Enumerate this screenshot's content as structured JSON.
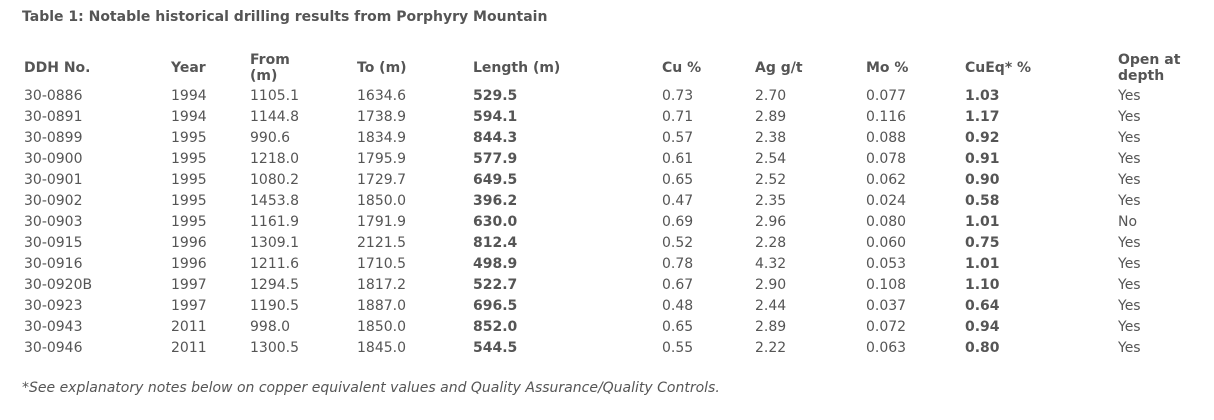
{
  "caption": "Table 1: Notable historical drilling results from Porphyry Mountain",
  "headers": [
    "DDH No.",
    "Year",
    "From (m)",
    "To (m)",
    "Length (m)",
    "Cu %",
    "Ag g/t",
    "Mo %",
    "CuEq* %",
    "Open at depth"
  ],
  "rows": [
    [
      "30-0886",
      "1994",
      "1105.1",
      "1634.6",
      "529.5",
      "0.73",
      "2.70",
      "0.077",
      "1.03",
      "Yes"
    ],
    [
      "30-0891",
      "1994",
      "1144.8",
      "1738.9",
      "594.1",
      "0.71",
      "2.89",
      "0.116",
      "1.17",
      "Yes"
    ],
    [
      "30-0899",
      "1995",
      "990.6",
      "1834.9",
      "844.3",
      "0.57",
      "2.38",
      "0.088",
      "0.92",
      "Yes"
    ],
    [
      "30-0900",
      "1995",
      "1218.0",
      "1795.9",
      "577.9",
      "0.61",
      "2.54",
      "0.078",
      "0.91",
      "Yes"
    ],
    [
      "30-0901",
      "1995",
      "1080.2",
      "1729.7",
      "649.5",
      "0.65",
      "2.52",
      "0.062",
      "0.90",
      "Yes"
    ],
    [
      "30-0902",
      "1995",
      "1453.8",
      "1850.0",
      "396.2",
      "0.47",
      "2.35",
      "0.024",
      "0.58",
      "Yes"
    ],
    [
      "30-0903",
      "1995",
      "1161.9",
      "1791.9",
      "630.0",
      "0.69",
      "2.96",
      "0.080",
      "1.01",
      "No"
    ],
    [
      "30-0915",
      "1996",
      "1309.1",
      "2121.5",
      "812.4",
      "0.52",
      "2.28",
      "0.060",
      "0.75",
      "Yes"
    ],
    [
      "30-0916",
      "1996",
      "1211.6",
      "1710.5",
      "498.9",
      "0.78",
      "4.32",
      "0.053",
      "1.01",
      "Yes"
    ],
    [
      "30-0920B",
      "1997",
      "1294.5",
      "1817.2",
      "522.7",
      "0.67",
      "2.90",
      "0.108",
      "1.10",
      "Yes"
    ],
    [
      "30-0923",
      "1997",
      "1190.5",
      "1887.0",
      "696.5",
      "0.48",
      "2.44",
      "0.037",
      "0.64",
      "Yes"
    ],
    [
      "30-0943",
      "2011",
      "998.0",
      "1850.0",
      "852.0",
      "0.65",
      "2.89",
      "0.072",
      "0.94",
      "Yes"
    ],
    [
      "30-0946",
      "2011",
      "1300.5",
      "1845.0",
      "544.5",
      "0.55",
      "2.22",
      "0.063",
      "0.80",
      "Yes"
    ]
  ],
  "bold_columns": [
    4,
    8
  ],
  "footnote": "*See explanatory notes below on copper equivalent values and Quality Assurance/Quality Controls.",
  "colors": {
    "text": "#555555",
    "background": "#ffffff"
  }
}
